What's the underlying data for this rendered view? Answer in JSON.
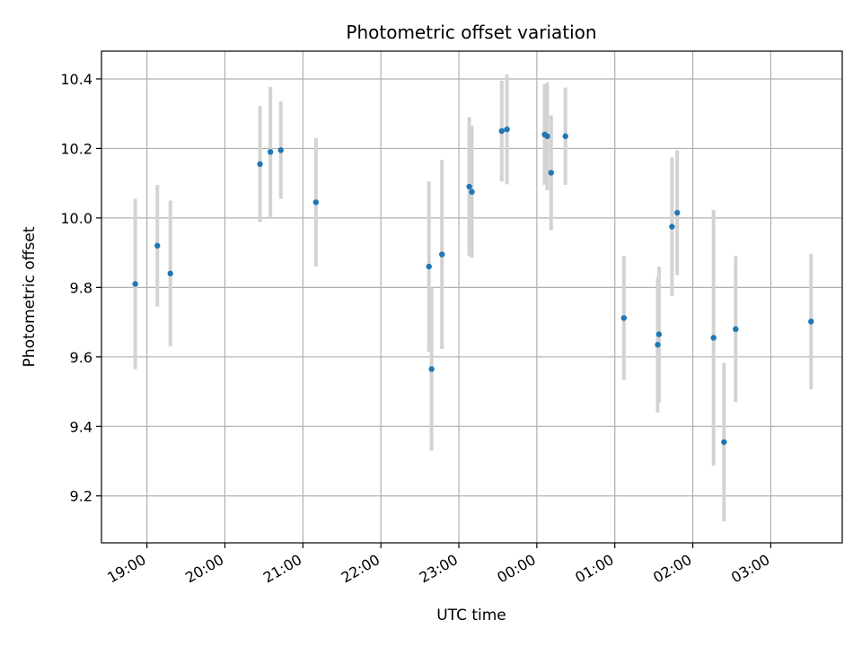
{
  "chart_data": {
    "type": "scatter",
    "title": "Photometric offset variation",
    "xlabel": "UTC time",
    "ylabel": "Photometric offset",
    "x_axis_type": "time",
    "x_start": "18:25",
    "x_range": [
      "18:25",
      "03:55"
    ],
    "ylim": [
      9.065,
      10.48
    ],
    "grid": true,
    "x_ticks": [
      "19:00",
      "20:00",
      "21:00",
      "22:00",
      "23:00",
      "00:00",
      "01:00",
      "02:00",
      "03:00"
    ],
    "y_ticks": [
      "9.2",
      "9.4",
      "9.6",
      "9.8",
      "10.0",
      "10.2",
      "10.4"
    ],
    "colors": {
      "point": "#1f77b4",
      "errorbar": "#d3d3d3",
      "grid": "#b0b0b0"
    },
    "points": [
      {
        "x": "18:51",
        "y": 9.81,
        "err": 0.245
      },
      {
        "x": "19:08",
        "y": 9.92,
        "err": 0.175
      },
      {
        "x": "19:18",
        "y": 9.84,
        "err": 0.21
      },
      {
        "x": "20:27",
        "y": 10.155,
        "err": 0.167
      },
      {
        "x": "20:35",
        "y": 10.19,
        "err": 0.187
      },
      {
        "x": "20:43",
        "y": 10.195,
        "err": 0.14
      },
      {
        "x": "21:10",
        "y": 10.045,
        "err": 0.185
      },
      {
        "x": "22:37",
        "y": 9.86,
        "err": 0.245
      },
      {
        "x": "22:39",
        "y": 9.565,
        "err": 0.235
      },
      {
        "x": "22:47",
        "y": 9.895,
        "err": 0.272
      },
      {
        "x": "23:08",
        "y": 10.09,
        "err": 0.2
      },
      {
        "x": "23:10",
        "y": 10.075,
        "err": 0.19
      },
      {
        "x": "23:33",
        "y": 10.25,
        "err": 0.145
      },
      {
        "x": "23:37",
        "y": 10.255,
        "err": 0.158
      },
      {
        "x": "00:06",
        "y": 10.24,
        "err": 0.145
      },
      {
        "x": "00:08",
        "y": 10.235,
        "err": 0.155
      },
      {
        "x": "00:11",
        "y": 10.13,
        "err": 0.165
      },
      {
        "x": "00:22",
        "y": 10.235,
        "err": 0.14
      },
      {
        "x": "01:07",
        "y": 9.712,
        "err": 0.178
      },
      {
        "x": "01:33",
        "y": 9.635,
        "err": 0.195
      },
      {
        "x": "01:34",
        "y": 9.665,
        "err": 0.195
      },
      {
        "x": "01:44",
        "y": 9.975,
        "err": 0.2
      },
      {
        "x": "01:48",
        "y": 10.015,
        "err": 0.18
      },
      {
        "x": "02:16",
        "y": 9.655,
        "err": 0.368
      },
      {
        "x": "02:24",
        "y": 9.355,
        "err": 0.228
      },
      {
        "x": "02:33",
        "y": 9.68,
        "err": 0.21
      },
      {
        "x": "03:31",
        "y": 9.702,
        "err": 0.195
      }
    ]
  }
}
